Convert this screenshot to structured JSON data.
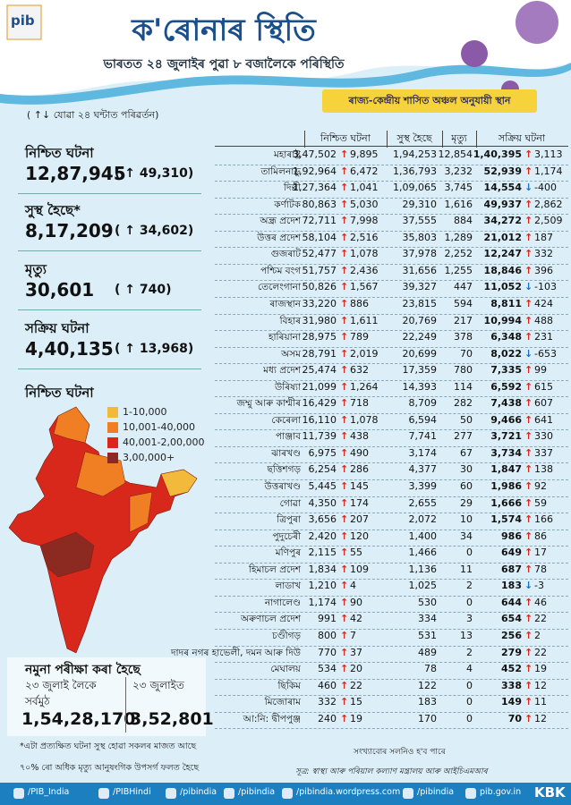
{
  "header": {
    "logo": "pib",
    "title": "ক'ৰোনাৰ স্থিতি",
    "subtitle": "ভাৰতত ২৪ জুলাইৰ পুৱা ৮ বজালৈকে পৰিস্থিতি"
  },
  "change_note": "( ↑↓ যোৱা ২৪ ঘন্টাত পৰিৱৰ্তন)",
  "stats": [
    {
      "label": "নিশ্চিত ঘটনা",
      "value": "12,87,945",
      "change": "( ↑ 49,310)"
    },
    {
      "label": "সুস্থ হৈছে*",
      "value": "8,17,209",
      "change": "( ↑ 34,602)"
    },
    {
      "label": "মৃত্যু",
      "value": "30,601",
      "change": "( ↑ 740)"
    },
    {
      "label": "সক্ৰিয় ঘটনা",
      "value": "4,40,135",
      "change": "( ↑ 13,968)"
    }
  ],
  "map": {
    "title": "নিশ্চিত ঘটনা",
    "legend": [
      {
        "label": "1-10,000",
        "color": "#f2b93b"
      },
      {
        "label": "10,001-40,000",
        "color": "#ef7f22"
      },
      {
        "label": "40,001-2,00,000",
        "color": "#d8281c"
      },
      {
        "label": "3,00,000+",
        "color": "#8c2a22"
      }
    ]
  },
  "table": {
    "title": "ৰাজ্য-কেন্দ্ৰীয় শাসিত অঞ্চল অনুযায়ী স্থান",
    "columns": [
      "নিশ্চিত ঘটনা",
      "সুস্থ হৈছে",
      "মৃত্যু",
      "সক্ৰিয় ঘটনা"
    ],
    "rows": [
      [
        "মহাৰাষ্ট্ৰ",
        "3,47,502",
        "9,895",
        "1,94,253",
        "12,854",
        "1,40,395",
        "3,113"
      ],
      [
        "তামিলনাডু",
        "1,92,964",
        "6,472",
        "1,36,793",
        "3,232",
        "52,939",
        "1,174"
      ],
      [
        "দিল্লী",
        "1,27,364",
        "1,041",
        "1,09,065",
        "3,745",
        "14,554",
        "-400"
      ],
      [
        "কৰ্ণাটক",
        "80,863",
        "5,030",
        "29,310",
        "1,616",
        "49,937",
        "2,862"
      ],
      [
        "অন্ধ্ৰ প্ৰদেশ",
        "72,711",
        "7,998",
        "37,555",
        "884",
        "34,272",
        "2,509"
      ],
      [
        "উত্তৰ প্ৰদেশ",
        "58,104",
        "2,516",
        "35,803",
        "1,289",
        "21,012",
        "187"
      ],
      [
        "গুজৰাট",
        "52,477",
        "1,078",
        "37,978",
        "2,252",
        "12,247",
        "332"
      ],
      [
        "পশ্চিম বংগ",
        "51,757",
        "2,436",
        "31,656",
        "1,255",
        "18,846",
        "396"
      ],
      [
        "তেলেংগানা",
        "50,826",
        "1,567",
        "39,327",
        "447",
        "11,052",
        "-103"
      ],
      [
        "ৰাজস্থান",
        "33,220",
        "886",
        "23,815",
        "594",
        "8,811",
        "424"
      ],
      [
        "বিহাৰ",
        "31,980",
        "1,611",
        "20,769",
        "217",
        "10,994",
        "488"
      ],
      [
        "হাৰিয়ানা",
        "28,975",
        "789",
        "22,249",
        "378",
        "6,348",
        "231"
      ],
      [
        "অসম",
        "28,791",
        "2,019",
        "20,699",
        "70",
        "8,022",
        "-653"
      ],
      [
        "মধ্য প্ৰদেশ",
        "25,474",
        "632",
        "17,359",
        "780",
        "7,335",
        "99"
      ],
      [
        "উৰিষ্যা",
        "21,099",
        "1,264",
        "14,393",
        "114",
        "6,592",
        "615"
      ],
      [
        "জম্মু আৰু কাশ্মীৰ",
        "16,429",
        "718",
        "8,709",
        "282",
        "7,438",
        "607"
      ],
      [
        "কেৰেলা",
        "16,110",
        "1,078",
        "6,594",
        "50",
        "9,466",
        "641"
      ],
      [
        "পাঞ্জাব",
        "11,739",
        "438",
        "7,741",
        "277",
        "3,721",
        "330"
      ],
      [
        "ঝাৰখণ্ড",
        "6,975",
        "490",
        "3,174",
        "67",
        "3,734",
        "337"
      ],
      [
        "ছত্তিশগড়",
        "6,254",
        "286",
        "4,377",
        "30",
        "1,847",
        "138"
      ],
      [
        "উত্তৰাখণ্ড",
        "5,445",
        "145",
        "3,399",
        "60",
        "1,986",
        "92"
      ],
      [
        "গোৱা",
        "4,350",
        "174",
        "2,655",
        "29",
        "1,666",
        "59"
      ],
      [
        "ত্ৰিপুৰা",
        "3,656",
        "207",
        "2,072",
        "10",
        "1,574",
        "166"
      ],
      [
        "পুদুচেৰী",
        "2,420",
        "120",
        "1,400",
        "34",
        "986",
        "86"
      ],
      [
        "মণিপুৰ",
        "2,115",
        "55",
        "1,466",
        "0",
        "649",
        "17"
      ],
      [
        "হিমাচল প্ৰদেশ",
        "1,834",
        "109",
        "1,136",
        "11",
        "687",
        "78"
      ],
      [
        "লাডাখ",
        "1,210",
        "4",
        "1,025",
        "2",
        "183",
        "-3"
      ],
      [
        "নাগালেণ্ড",
        "1,174",
        "90",
        "530",
        "0",
        "644",
        "46"
      ],
      [
        "অৰুণাচল প্ৰদেশ",
        "991",
        "42",
        "334",
        "3",
        "654",
        "22"
      ],
      [
        "চণ্ডীগড়",
        "800",
        "7",
        "531",
        "13",
        "256",
        "2"
      ],
      [
        "দাদৰ নগৰ হাভেলী, দমন আৰু দিউ",
        "770",
        "37",
        "489",
        "2",
        "279",
        "22"
      ],
      [
        "মেঘালয়",
        "534",
        "20",
        "78",
        "4",
        "452",
        "19"
      ],
      [
        "ছিকিম",
        "460",
        "22",
        "122",
        "0",
        "338",
        "12"
      ],
      [
        "মিজোৰাম",
        "332",
        "15",
        "183",
        "0",
        "149",
        "11"
      ],
      [
        "আ:নি: দ্বীপপুঞ্জ",
        "240",
        "19",
        "170",
        "0",
        "70",
        "12"
      ]
    ]
  },
  "tests": {
    "title": "নমুনা পৰীক্ষা কৰা হৈছে",
    "until_label": "২৩ জুলাই লৈকে",
    "total_label": "সৰ্বমুঠ",
    "total": "1,54,28,170",
    "day_label": "২৩ জুলাইত",
    "day": "3,52,801"
  },
  "notes": {
    "recovered": "*এটা প্ৰত্যক্ষিত ঘটনা সুস্থ হোৱা সকলৰ মাজত আছে",
    "deaths": "৭০% ৰো অধিক মৃত্যু আনুষংগিক উপসৰ্গ ফলত হৈছে",
    "change": "সংখ্যাবোৰ সলনিও হ'ব পাৰে",
    "source": "সূত্ৰ: স্বাস্থ্য আৰু পৰিয়াল কল্যাণ মন্ত্ৰালয় আৰু আইচিএমআৰ"
  },
  "footer": {
    "links": [
      "/PIB_India",
      "/PIBHindi",
      "/pibindia",
      "/pibindia",
      "/pibindia.wordpress.com",
      "/pibindia",
      "pib.gov.in"
    ],
    "badge": "KBK"
  }
}
